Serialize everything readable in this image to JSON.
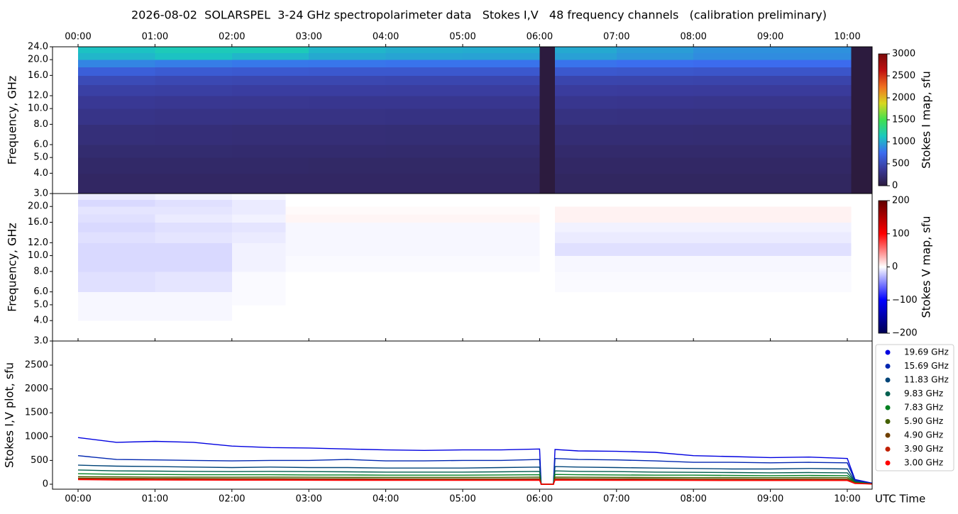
{
  "title": "2026-08-02  SOLARSPEL  3-24 GHz spectropolarimeter data   Stokes I,V   48 frequency channels   (calibration preliminary)",
  "chart_data": [
    {
      "type": "heatmap",
      "ylabel": "Frequency, GHz",
      "colorbar_label": "Stokes I map, sfu",
      "x": [
        0,
        1,
        2,
        3,
        4,
        5,
        6,
        6.2,
        7,
        8,
        9,
        10.05,
        10.33
      ],
      "y": [
        3,
        4,
        5,
        6,
        8,
        10,
        12,
        14,
        16,
        18,
        20,
        22,
        24
      ],
      "z": [
        [
          150,
          150,
          150,
          150,
          150,
          150,
          0,
          140,
          140,
          140,
          140,
          0
        ],
        [
          170,
          170,
          170,
          165,
          165,
          165,
          0,
          160,
          160,
          160,
          160,
          0
        ],
        [
          200,
          200,
          195,
          195,
          190,
          190,
          0,
          185,
          185,
          185,
          185,
          0
        ],
        [
          240,
          235,
          230,
          230,
          225,
          225,
          0,
          220,
          220,
          215,
          215,
          0
        ],
        [
          300,
          290,
          285,
          285,
          280,
          280,
          0,
          275,
          270,
          265,
          265,
          0
        ],
        [
          350,
          340,
          335,
          330,
          330,
          330,
          0,
          325,
          320,
          315,
          315,
          0
        ],
        [
          420,
          410,
          400,
          400,
          395,
          395,
          0,
          390,
          385,
          380,
          380,
          0
        ],
        [
          500,
          480,
          470,
          470,
          465,
          465,
          0,
          460,
          455,
          450,
          450,
          0
        ],
        [
          650,
          620,
          610,
          600,
          600,
          600,
          0,
          600,
          590,
          580,
          580,
          0
        ],
        [
          850,
          820,
          800,
          790,
          780,
          780,
          0,
          780,
          760,
          740,
          740,
          0
        ],
        [
          1050,
          1100,
          1050,
          1000,
          980,
          970,
          0,
          960,
          920,
          880,
          880,
          0
        ],
        [
          1100,
          1150,
          1150,
          1050,
          1020,
          1010,
          0,
          1000,
          950,
          900,
          900,
          0
        ]
      ],
      "xlim": [
        -0.332,
        10.323
      ],
      "ylim": [
        3,
        24
      ],
      "yscale": "log",
      "xtick_side": "top",
      "xticks": [
        {
          "value": 0,
          "label": "00:00"
        },
        {
          "value": 1,
          "label": "01:00"
        },
        {
          "value": 2,
          "label": "02:00"
        },
        {
          "value": 3,
          "label": "03:00"
        },
        {
          "value": 4,
          "label": "04:00"
        },
        {
          "value": 5,
          "label": "05:00"
        },
        {
          "value": 6,
          "label": "06:00"
        },
        {
          "value": 7,
          "label": "07:00"
        },
        {
          "value": 8,
          "label": "08:00"
        },
        {
          "value": 9,
          "label": "09:00"
        },
        {
          "value": 10,
          "label": "10:00"
        }
      ],
      "yticks": [
        {
          "value": 3,
          "label": "3.0"
        },
        {
          "value": 4,
          "label": "4.0"
        },
        {
          "value": 5,
          "label": "5.0"
        },
        {
          "value": 6,
          "label": "6.0"
        },
        {
          "value": 8,
          "label": "8.0"
        },
        {
          "value": 10,
          "label": "10.0"
        },
        {
          "value": 12,
          "label": "12.0"
        },
        {
          "value": 16,
          "label": "16.0"
        },
        {
          "value": 20,
          "label": "20.0"
        },
        {
          "value": 24,
          "label": "24.0"
        }
      ],
      "clim": [
        0,
        3000
      ],
      "cticks": [
        0,
        500,
        1000,
        1500,
        2000,
        2500,
        3000
      ],
      "colorscale": [
        "#2c1b3e",
        "#3a3a9a",
        "#3c6cf0",
        "#1ac8c0",
        "#40e050",
        "#d8d820",
        "#f07020",
        "#c01010",
        "#7a0a0a"
      ]
    },
    {
      "type": "heatmap",
      "ylabel": "Frequency, GHz",
      "colorbar_label": "Stokes V map, sfu",
      "x": [
        0,
        1,
        2,
        2.7,
        6,
        6.2,
        10.05,
        10.33
      ],
      "y": [
        3,
        4,
        5,
        6,
        8,
        10,
        12,
        14,
        16,
        18,
        20,
        22,
        24
      ],
      "z": [
        [
          0,
          0,
          0,
          0,
          0,
          0,
          0
        ],
        [
          -3,
          -3,
          0,
          0,
          0,
          0,
          0
        ],
        [
          -3,
          -3,
          -2,
          0,
          0,
          0,
          0
        ],
        [
          -12,
          -10,
          -2,
          0,
          0,
          -2,
          0
        ],
        [
          -15,
          -15,
          -5,
          -2,
          0,
          -3,
          0
        ],
        [
          -15,
          -15,
          -5,
          -3,
          0,
          -12,
          0
        ],
        [
          -12,
          -10,
          -8,
          -3,
          0,
          -8,
          0
        ],
        [
          -15,
          -12,
          -10,
          -3,
          0,
          -5,
          0
        ],
        [
          -12,
          -8,
          -5,
          4,
          0,
          5,
          0
        ],
        [
          -10,
          -10,
          -8,
          2,
          0,
          5,
          0
        ],
        [
          -15,
          -12,
          -8,
          0,
          0,
          0,
          0
        ],
        [
          -8,
          -5,
          -3,
          0,
          0,
          0,
          0
        ]
      ],
      "xlim": [
        -0.332,
        10.323
      ],
      "ylim": [
        3,
        24
      ],
      "yscale": "log",
      "yticks": [
        {
          "value": 3,
          "label": "3.0"
        },
        {
          "value": 4,
          "label": "4.0"
        },
        {
          "value": 5,
          "label": "5.0"
        },
        {
          "value": 6,
          "label": "6.0"
        },
        {
          "value": 8,
          "label": "8.0"
        },
        {
          "value": 10,
          "label": "10.0"
        },
        {
          "value": 12,
          "label": "12.0"
        },
        {
          "value": 16,
          "label": "16.0"
        },
        {
          "value": 20,
          "label": "20.0"
        }
      ],
      "clim": [
        -200,
        200
      ],
      "cticks": [
        {
          "value": -200,
          "label": "−200"
        },
        {
          "value": -100,
          "label": "−100"
        },
        0,
        100,
        200
      ],
      "colorscale": [
        "#000050",
        "#0000ff",
        "#ffffff",
        "#ff0000",
        "#600000"
      ]
    },
    {
      "type": "line",
      "ylabel": "Stokes I,V plot, sfu",
      "xlabel": "UTC Time",
      "legend": "outside right",
      "xtick_side": "bottom",
      "x": [
        0,
        0.5,
        1,
        1.5,
        2,
        2.5,
        3,
        3.5,
        4,
        4.5,
        5,
        5.5,
        6,
        6.02,
        6.18,
        6.2,
        6.5,
        7,
        7.5,
        8,
        8.5,
        9,
        9.5,
        10,
        10.1,
        10.33
      ],
      "series": [
        {
          "name": "19.69 GHz",
          "color": "#0000e0",
          "values": [
            980,
            880,
            900,
            880,
            800,
            770,
            760,
            740,
            720,
            710,
            720,
            720,
            740,
            0,
            0,
            730,
            700,
            690,
            670,
            600,
            580,
            560,
            570,
            540,
            100,
            20
          ]
        },
        {
          "name": "15.69 GHz",
          "color": "#0026b0",
          "values": [
            600,
            520,
            510,
            500,
            490,
            500,
            500,
            520,
            490,
            490,
            500,
            500,
            520,
            0,
            0,
            540,
            520,
            510,
            490,
            460,
            460,
            450,
            460,
            450,
            80,
            10
          ]
        },
        {
          "name": "11.83 GHz",
          "color": "#004478",
          "values": [
            400,
            380,
            370,
            360,
            350,
            360,
            350,
            350,
            340,
            340,
            340,
            350,
            360,
            0,
            0,
            370,
            360,
            350,
            340,
            330,
            320,
            320,
            330,
            320,
            60,
            10
          ]
        },
        {
          "name": "9.83 GHz",
          "color": "#006050",
          "values": [
            300,
            280,
            275,
            270,
            265,
            270,
            265,
            260,
            255,
            255,
            255,
            260,
            270,
            0,
            0,
            280,
            270,
            265,
            255,
            250,
            245,
            240,
            245,
            240,
            50,
            5
          ]
        },
        {
          "name": "7.83 GHz",
          "color": "#008020",
          "values": [
            220,
            210,
            205,
            200,
            200,
            200,
            195,
            195,
            190,
            190,
            190,
            195,
            200,
            0,
            0,
            205,
            200,
            195,
            190,
            190,
            185,
            180,
            185,
            180,
            40,
            5
          ]
        },
        {
          "name": "5.90 GHz",
          "color": "#446000",
          "values": [
            160,
            155,
            150,
            150,
            148,
            150,
            148,
            145,
            145,
            145,
            145,
            145,
            150,
            0,
            0,
            150,
            148,
            145,
            142,
            140,
            140,
            138,
            140,
            138,
            30,
            5
          ]
        },
        {
          "name": "4.90 GHz",
          "color": "#704000",
          "values": [
            130,
            125,
            122,
            120,
            118,
            118,
            115,
            115,
            113,
            113,
            112,
            112,
            115,
            0,
            0,
            118,
            116,
            114,
            112,
            110,
            110,
            108,
            110,
            108,
            25,
            5
          ]
        },
        {
          "name": "3.90 GHz",
          "color": "#c02000",
          "values": [
            110,
            105,
            100,
            100,
            98,
            98,
            95,
            95,
            94,
            93,
            93,
            92,
            95,
            0,
            0,
            98,
            96,
            94,
            92,
            90,
            90,
            88,
            90,
            88,
            20,
            5
          ]
        },
        {
          "name": "3.00 GHz",
          "color": "#ff0000",
          "values": [
            95,
            90,
            88,
            87,
            85,
            85,
            83,
            82,
            82,
            81,
            80,
            80,
            82,
            0,
            0,
            85,
            83,
            82,
            80,
            79,
            78,
            77,
            78,
            77,
            15,
            5
          ]
        }
      ],
      "xlim": [
        -0.332,
        10.323
      ],
      "ylim": [
        -104,
        3006
      ],
      "yticks": [
        0,
        500,
        1000,
        1500,
        2000,
        2500
      ],
      "xticks": [
        {
          "value": 0,
          "label": "00:00"
        },
        {
          "value": 1,
          "label": "01:00"
        },
        {
          "value": 2,
          "label": "02:00"
        },
        {
          "value": 3,
          "label": "03:00"
        },
        {
          "value": 4,
          "label": "04:00"
        },
        {
          "value": 5,
          "label": "05:00"
        },
        {
          "value": 6,
          "label": "06:00"
        },
        {
          "value": 7,
          "label": "07:00"
        },
        {
          "value": 8,
          "label": "08:00"
        },
        {
          "value": 9,
          "label": "09:00"
        },
        {
          "value": 10,
          "label": "10:00"
        }
      ]
    }
  ]
}
